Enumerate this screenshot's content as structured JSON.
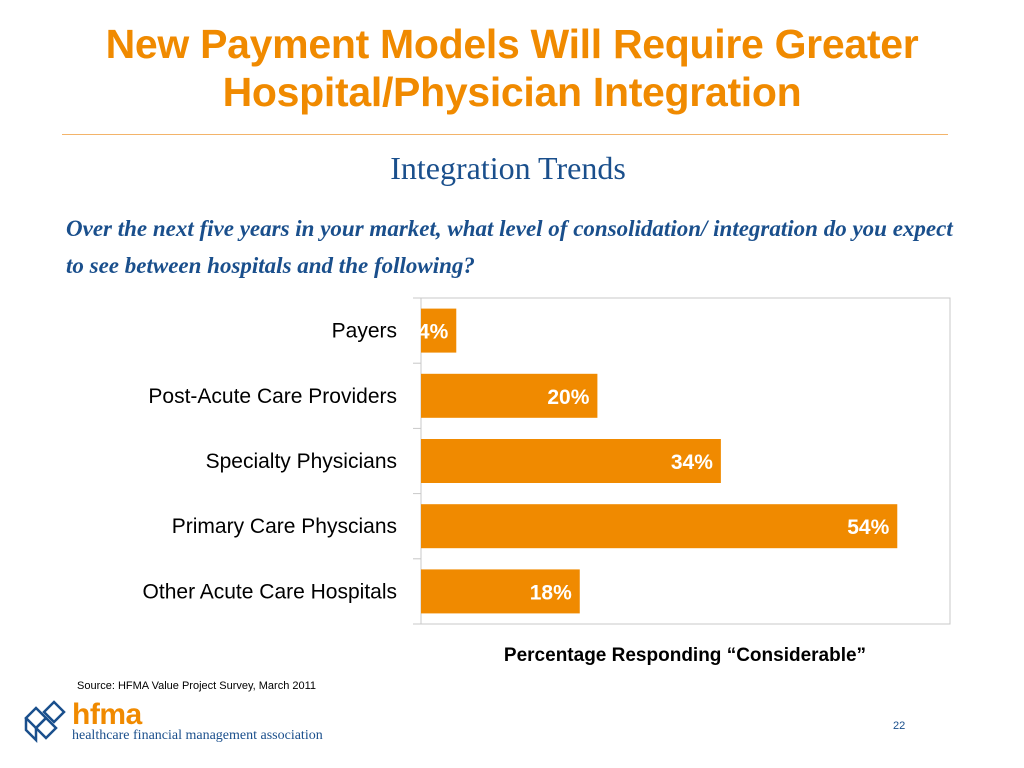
{
  "slide": {
    "title": "New Payment Models Will Require Greater Hospital/Physician Integration",
    "subtitle": "Integration Trends",
    "question": "Over the next five years in your market, what level of consolidation/ integration do you expect to see between hospitals and the following?",
    "source": "Source:  HFMA Value Project Survey, March 2011",
    "page_number": "22"
  },
  "logo": {
    "name": "hfma",
    "tagline": "healthcare financial management association",
    "icon": "hfma-cube-logo-icon"
  },
  "colors": {
    "accent": "#f08a00",
    "text_blue": "#1a4f8c",
    "plot_border": "#c8c8c8"
  },
  "chart_data": {
    "type": "bar",
    "orientation": "horizontal",
    "categories": [
      "Payers",
      "Post-Acute Care Providers",
      "Specialty Physicians",
      "Primary Care Physcians",
      "Other Acute Care Hospitals"
    ],
    "values": [
      4,
      20,
      34,
      54,
      18
    ],
    "value_labels": [
      "4%",
      "20%",
      "34%",
      "54%",
      "18%"
    ],
    "xlabel": "Percentage Responding “Considerable”",
    "ylabel": "",
    "xlim": [
      0,
      60
    ],
    "grid": false,
    "bar_color": "#f08a00"
  }
}
